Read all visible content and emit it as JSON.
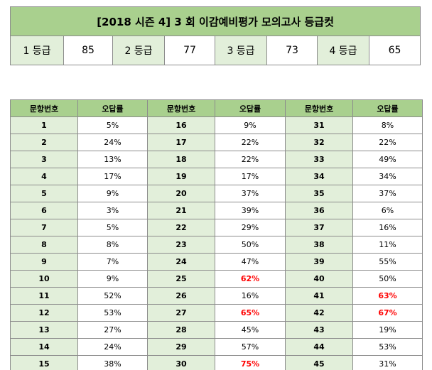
{
  "title": "[2018 시즌 4] 3 회  이감예비평가  모의고사  등급컷",
  "grade_cuts": [
    {
      "label": "1 등급",
      "score": "85"
    },
    {
      "label": "2 등급",
      "score": "77"
    },
    {
      "label": "3 등급",
      "score": "73"
    },
    {
      "label": "4 등급",
      "score": "65"
    }
  ],
  "rate_table": {
    "headers": [
      "문항번호",
      "오답률",
      "문항번호",
      "오답률",
      "문항번호",
      "오답률"
    ],
    "rows": [
      [
        {
          "q": "1",
          "r": "5%",
          "h": false
        },
        {
          "q": "16",
          "r": "9%",
          "h": false
        },
        {
          "q": "31",
          "r": "8%",
          "h": false
        }
      ],
      [
        {
          "q": "2",
          "r": "24%",
          "h": false
        },
        {
          "q": "17",
          "r": "22%",
          "h": false
        },
        {
          "q": "32",
          "r": "22%",
          "h": false
        }
      ],
      [
        {
          "q": "3",
          "r": "13%",
          "h": false
        },
        {
          "q": "18",
          "r": "22%",
          "h": false
        },
        {
          "q": "33",
          "r": "49%",
          "h": false
        }
      ],
      [
        {
          "q": "4",
          "r": "17%",
          "h": false
        },
        {
          "q": "19",
          "r": "17%",
          "h": false
        },
        {
          "q": "34",
          "r": "34%",
          "h": false
        }
      ],
      [
        {
          "q": "5",
          "r": "9%",
          "h": false
        },
        {
          "q": "20",
          "r": "37%",
          "h": false
        },
        {
          "q": "35",
          "r": "37%",
          "h": false
        }
      ],
      [
        {
          "q": "6",
          "r": "3%",
          "h": false
        },
        {
          "q": "21",
          "r": "39%",
          "h": false
        },
        {
          "q": "36",
          "r": "6%",
          "h": false
        }
      ],
      [
        {
          "q": "7",
          "r": "5%",
          "h": false
        },
        {
          "q": "22",
          "r": "29%",
          "h": false
        },
        {
          "q": "37",
          "r": "16%",
          "h": false
        }
      ],
      [
        {
          "q": "8",
          "r": "8%",
          "h": false
        },
        {
          "q": "23",
          "r": "50%",
          "h": false
        },
        {
          "q": "38",
          "r": "11%",
          "h": false
        }
      ],
      [
        {
          "q": "9",
          "r": "7%",
          "h": false
        },
        {
          "q": "24",
          "r": "47%",
          "h": false
        },
        {
          "q": "39",
          "r": "55%",
          "h": false
        }
      ],
      [
        {
          "q": "10",
          "r": "9%",
          "h": false
        },
        {
          "q": "25",
          "r": "62%",
          "h": true
        },
        {
          "q": "40",
          "r": "50%",
          "h": false
        }
      ],
      [
        {
          "q": "11",
          "r": "52%",
          "h": false
        },
        {
          "q": "26",
          "r": "16%",
          "h": false
        },
        {
          "q": "41",
          "r": "63%",
          "h": true
        }
      ],
      [
        {
          "q": "12",
          "r": "53%",
          "h": false
        },
        {
          "q": "27",
          "r": "65%",
          "h": true
        },
        {
          "q": "42",
          "r": "67%",
          "h": true
        }
      ],
      [
        {
          "q": "13",
          "r": "27%",
          "h": false
        },
        {
          "q": "28",
          "r": "45%",
          "h": false
        },
        {
          "q": "43",
          "r": "19%",
          "h": false
        }
      ],
      [
        {
          "q": "14",
          "r": "24%",
          "h": false
        },
        {
          "q": "29",
          "r": "57%",
          "h": false
        },
        {
          "q": "44",
          "r": "53%",
          "h": false
        }
      ],
      [
        {
          "q": "15",
          "r": "38%",
          "h": false
        },
        {
          "q": "30",
          "r": "75%",
          "h": true
        },
        {
          "q": "45",
          "r": "31%",
          "h": false
        }
      ]
    ]
  },
  "colors": {
    "header_green": "#a9d08e",
    "label_green": "#e2efda",
    "highlight_red": "#ff0000",
    "border": "#8c8c8c"
  }
}
